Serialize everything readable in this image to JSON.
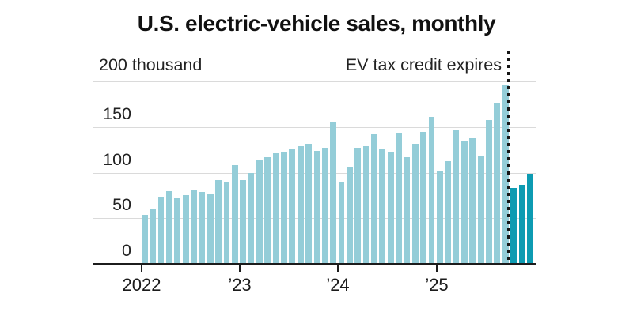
{
  "title": "U.S. electric-vehicle sales, monthly",
  "unit_label": "200 thousand",
  "annotation": "EV tax credit expires",
  "colors": {
    "bar": "#94CDD8",
    "bar_highlight": "#0D9BB2",
    "gridline": "#DADADA",
    "axis": "#1C1C1C",
    "dotted_line": "#161616"
  },
  "chart_data": {
    "type": "bar",
    "title": "U.S. electric-vehicle sales, monthly",
    "ylabel": "thousand",
    "ylim": [
      0,
      200
    ],
    "y_gridlines": [
      0,
      50,
      100,
      150,
      200
    ],
    "y_tick_labels": {
      "t150": "150",
      "t100": "100",
      "t50": "50",
      "t0": "0"
    },
    "x_tick_labels": {
      "t2022": "2022",
      "t2023": "’23",
      "t2024": "’24",
      "t2025": "’25"
    },
    "annotation": "EV tax credit expires",
    "annotation_line_between": [
      "Sep 2025",
      "Oct 2025"
    ],
    "highlight_start_index": 45,
    "categories": [
      "Jan 2022",
      "Feb 2022",
      "Mar 2022",
      "Apr 2022",
      "May 2022",
      "Jun 2022",
      "Jul 2022",
      "Aug 2022",
      "Sep 2022",
      "Oct 2022",
      "Nov 2022",
      "Dec 2022",
      "Jan 2023",
      "Feb 2023",
      "Mar 2023",
      "Apr 2023",
      "May 2023",
      "Jun 2023",
      "Jul 2023",
      "Aug 2023",
      "Sep 2023",
      "Oct 2023",
      "Nov 2023",
      "Dec 2023",
      "Jan 2024",
      "Feb 2024",
      "Mar 2024",
      "Apr 2024",
      "May 2024",
      "Jun 2024",
      "Jul 2024",
      "Aug 2024",
      "Sep 2024",
      "Oct 2024",
      "Nov 2024",
      "Dec 2024",
      "Jan 2025",
      "Feb 2025",
      "Mar 2025",
      "Apr 2025",
      "May 2025",
      "Jun 2025",
      "Jul 2025",
      "Aug 2025",
      "Sep 2025",
      "Oct 2025",
      "Nov 2025",
      "Dec 2025"
    ],
    "values": [
      54,
      60,
      74,
      80,
      72,
      75,
      81,
      79,
      76,
      92,
      89,
      108,
      92,
      100,
      114,
      117,
      121,
      122,
      126,
      129,
      132,
      124,
      127,
      155,
      90,
      106,
      127,
      129,
      143,
      126,
      123,
      144,
      117,
      132,
      145,
      161,
      102,
      113,
      147,
      135,
      138,
      118,
      158,
      177,
      196,
      83,
      87,
      99
    ]
  }
}
